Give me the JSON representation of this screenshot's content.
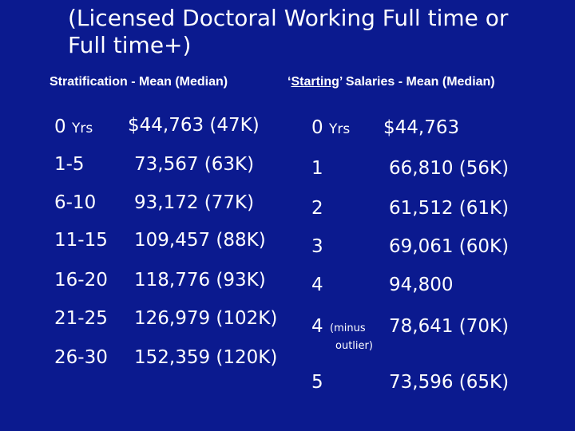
{
  "title": "(Licensed Doctoral Working Full time or Full time+)",
  "left_heading": "Stratification - Mean (Median)",
  "right_heading": {
    "open_quote": "‘",
    "underlined": "Starting",
    "rest": "’ Salaries - Mean (Median)"
  },
  "left_table": {
    "rows": [
      {
        "range_num": "0",
        "range_unit": "Yrs",
        "salary": "$44,763 (47K)"
      },
      {
        "range_num": "1-5",
        "range_unit": "",
        "salary": "73,567  (63K)"
      },
      {
        "range_num": "6-10",
        "range_unit": "",
        "salary": "93,172  (77K)"
      },
      {
        "range_num": "11-15",
        "range_unit": "",
        "salary": "109,457 (88K)"
      },
      {
        "range_num": "16-20",
        "range_unit": "",
        "salary": "118,776 (93K)"
      },
      {
        "range_num": "21-25",
        "range_unit": "",
        "salary": "126,979 (102K)"
      },
      {
        "range_num": "26-30",
        "range_unit": "",
        "salary": "152,359 (120K)"
      }
    ]
  },
  "right_table": {
    "rows": [
      {
        "year": "0",
        "unit": "Yrs",
        "note1": "",
        "note2": "",
        "salary": "$44,763"
      },
      {
        "year": "1",
        "unit": "",
        "note1": "",
        "note2": "",
        "salary": "66,810 (56K)"
      },
      {
        "year": "2",
        "unit": "",
        "note1": "",
        "note2": "",
        "salary": "61,512 (61K)"
      },
      {
        "year": "3",
        "unit": "",
        "note1": "",
        "note2": "",
        "salary": "69,061 (60K)"
      },
      {
        "year": "4",
        "unit": "",
        "note1": "",
        "note2": "",
        "salary": "94,800"
      },
      {
        "year": "4",
        "unit": "",
        "note1": "(minus",
        "note2": "outlier)",
        "salary": "78,641 (70K)"
      },
      {
        "year": "5",
        "unit": "",
        "note1": "",
        "note2": "",
        "salary": "73,596 (65K)"
      }
    ]
  },
  "colors": {
    "background": "#0b1a8f",
    "text": "#ffffff"
  }
}
